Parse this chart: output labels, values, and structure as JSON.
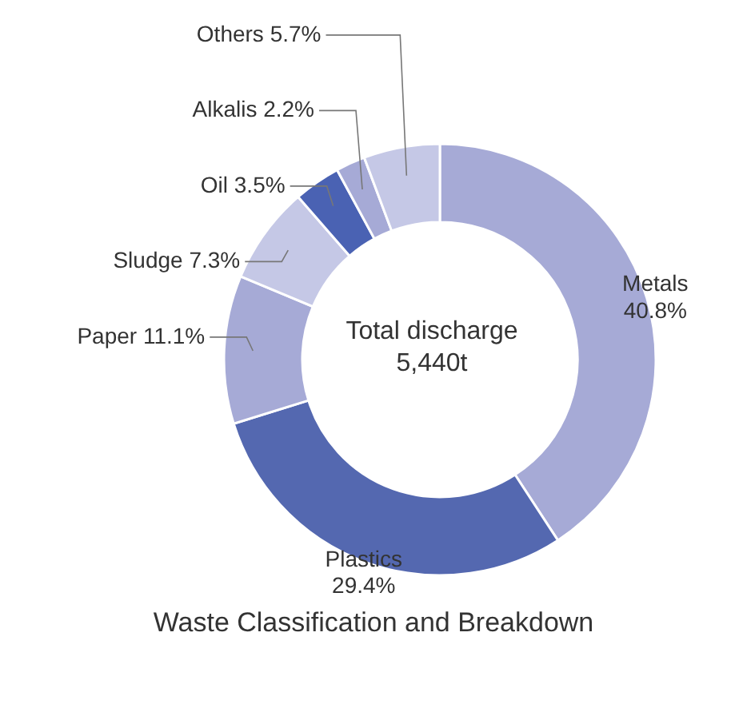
{
  "chart_data": {
    "type": "donut",
    "title": "Waste Classification and Breakdown",
    "categories": [
      "Metals",
      "Plastics",
      "Paper",
      "Sludge",
      "Oil",
      "Alkalis",
      "Others"
    ],
    "values": [
      40.8,
      29.4,
      11.1,
      7.3,
      3.5,
      2.2,
      5.7
    ],
    "value_labels": [
      "40.8%",
      "29.4%",
      "11.1%",
      "7.3%",
      "3.5%",
      "2.2%",
      "5.7%"
    ],
    "colors": [
      "#a6aad6",
      "#5468b0",
      "#a6aad6",
      "#c5c8e6",
      "#4a62b3",
      "#a6aad6",
      "#c5c8e6"
    ],
    "annotations": [
      "Total discharge",
      "5,440t"
    ]
  }
}
